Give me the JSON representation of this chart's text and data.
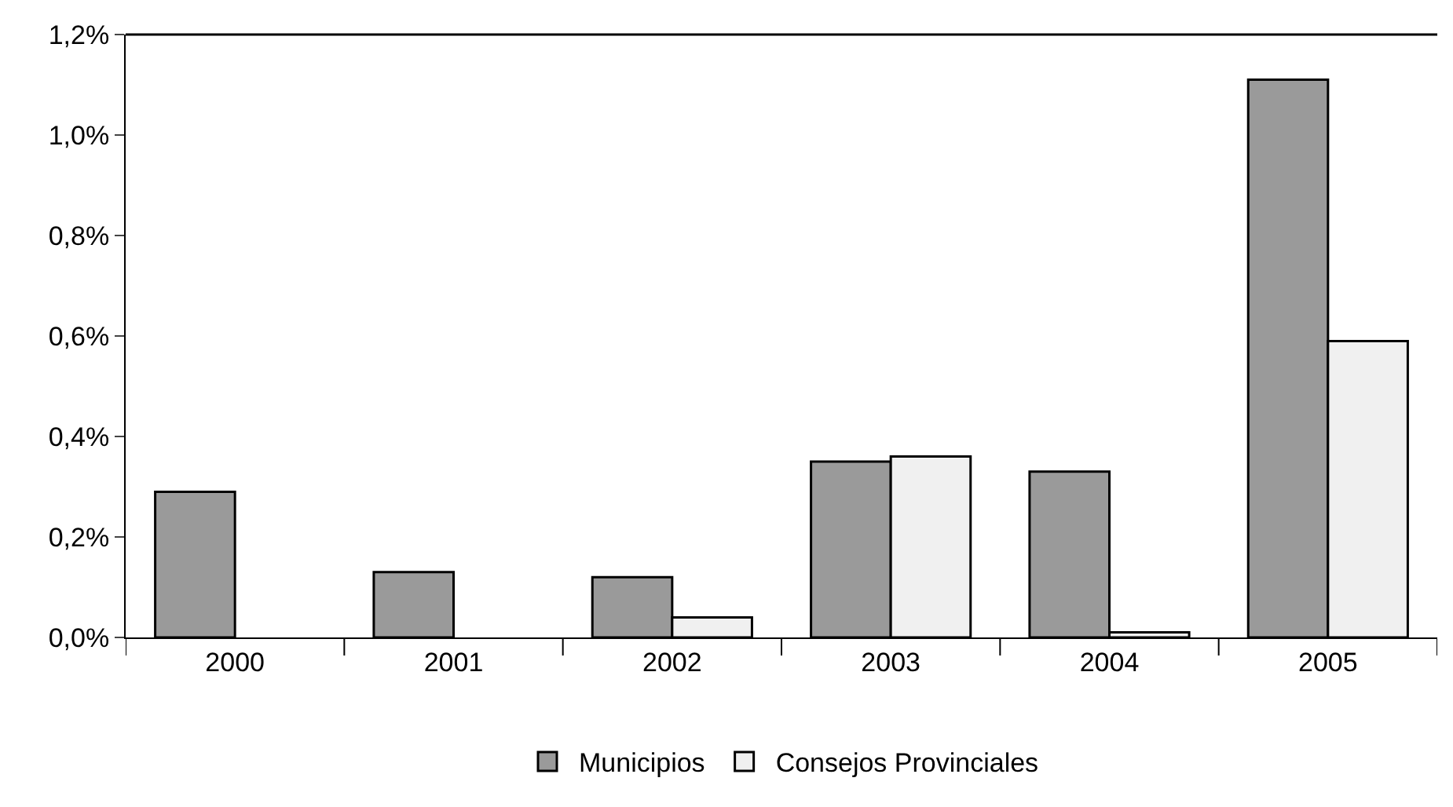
{
  "chart_data": {
    "type": "bar",
    "categories": [
      "2000",
      "2001",
      "2002",
      "2003",
      "2004",
      "2005"
    ],
    "series": [
      {
        "name": "Municipios",
        "color": "#9a9a9a",
        "values": [
          0.29,
          0.13,
          0.12,
          0.35,
          0.33,
          1.11
        ]
      },
      {
        "name": "Consejos Provinciales",
        "color": "#f0f0f0",
        "values": [
          null,
          null,
          0.04,
          0.36,
          0.01,
          0.59
        ]
      }
    ],
    "ylim": [
      0,
      1.2
    ],
    "yticks": [
      {
        "value": 0,
        "label": "0,0%"
      },
      {
        "value": 0.2,
        "label": "0,2%"
      },
      {
        "value": 0.4,
        "label": "0,4%"
      },
      {
        "value": 0.6,
        "label": "0,6%"
      },
      {
        "value": 0.8,
        "label": "0,8%"
      },
      {
        "value": 1.0,
        "label": "1,0%"
      },
      {
        "value": 1.2,
        "label": "1,2%"
      }
    ],
    "legend": "bottom"
  }
}
